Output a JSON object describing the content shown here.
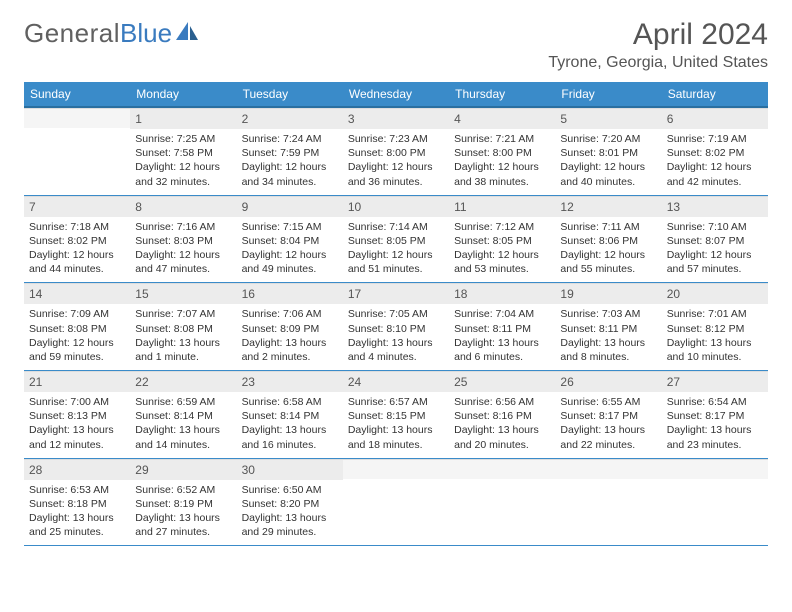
{
  "logo": {
    "text1": "General",
    "text2": "Blue"
  },
  "header": {
    "month": "April 2024",
    "location": "Tyrone, Georgia, United States"
  },
  "weekdays": [
    "Sunday",
    "Monday",
    "Tuesday",
    "Wednesday",
    "Thursday",
    "Friday",
    "Saturday"
  ],
  "colors": {
    "header_bg": "#3a8bc9",
    "header_text": "#ffffff",
    "daynum_bg": "#ececec",
    "border": "#3a8bc9"
  },
  "weeks": [
    [
      {
        "n": "",
        "sunrise": "",
        "sunset": "",
        "daylight1": "",
        "daylight2": ""
      },
      {
        "n": "1",
        "sunrise": "Sunrise: 7:25 AM",
        "sunset": "Sunset: 7:58 PM",
        "daylight1": "Daylight: 12 hours",
        "daylight2": "and 32 minutes."
      },
      {
        "n": "2",
        "sunrise": "Sunrise: 7:24 AM",
        "sunset": "Sunset: 7:59 PM",
        "daylight1": "Daylight: 12 hours",
        "daylight2": "and 34 minutes."
      },
      {
        "n": "3",
        "sunrise": "Sunrise: 7:23 AM",
        "sunset": "Sunset: 8:00 PM",
        "daylight1": "Daylight: 12 hours",
        "daylight2": "and 36 minutes."
      },
      {
        "n": "4",
        "sunrise": "Sunrise: 7:21 AM",
        "sunset": "Sunset: 8:00 PM",
        "daylight1": "Daylight: 12 hours",
        "daylight2": "and 38 minutes."
      },
      {
        "n": "5",
        "sunrise": "Sunrise: 7:20 AM",
        "sunset": "Sunset: 8:01 PM",
        "daylight1": "Daylight: 12 hours",
        "daylight2": "and 40 minutes."
      },
      {
        "n": "6",
        "sunrise": "Sunrise: 7:19 AM",
        "sunset": "Sunset: 8:02 PM",
        "daylight1": "Daylight: 12 hours",
        "daylight2": "and 42 minutes."
      }
    ],
    [
      {
        "n": "7",
        "sunrise": "Sunrise: 7:18 AM",
        "sunset": "Sunset: 8:02 PM",
        "daylight1": "Daylight: 12 hours",
        "daylight2": "and 44 minutes."
      },
      {
        "n": "8",
        "sunrise": "Sunrise: 7:16 AM",
        "sunset": "Sunset: 8:03 PM",
        "daylight1": "Daylight: 12 hours",
        "daylight2": "and 47 minutes."
      },
      {
        "n": "9",
        "sunrise": "Sunrise: 7:15 AM",
        "sunset": "Sunset: 8:04 PM",
        "daylight1": "Daylight: 12 hours",
        "daylight2": "and 49 minutes."
      },
      {
        "n": "10",
        "sunrise": "Sunrise: 7:14 AM",
        "sunset": "Sunset: 8:05 PM",
        "daylight1": "Daylight: 12 hours",
        "daylight2": "and 51 minutes."
      },
      {
        "n": "11",
        "sunrise": "Sunrise: 7:12 AM",
        "sunset": "Sunset: 8:05 PM",
        "daylight1": "Daylight: 12 hours",
        "daylight2": "and 53 minutes."
      },
      {
        "n": "12",
        "sunrise": "Sunrise: 7:11 AM",
        "sunset": "Sunset: 8:06 PM",
        "daylight1": "Daylight: 12 hours",
        "daylight2": "and 55 minutes."
      },
      {
        "n": "13",
        "sunrise": "Sunrise: 7:10 AM",
        "sunset": "Sunset: 8:07 PM",
        "daylight1": "Daylight: 12 hours",
        "daylight2": "and 57 minutes."
      }
    ],
    [
      {
        "n": "14",
        "sunrise": "Sunrise: 7:09 AM",
        "sunset": "Sunset: 8:08 PM",
        "daylight1": "Daylight: 12 hours",
        "daylight2": "and 59 minutes."
      },
      {
        "n": "15",
        "sunrise": "Sunrise: 7:07 AM",
        "sunset": "Sunset: 8:08 PM",
        "daylight1": "Daylight: 13 hours",
        "daylight2": "and 1 minute."
      },
      {
        "n": "16",
        "sunrise": "Sunrise: 7:06 AM",
        "sunset": "Sunset: 8:09 PM",
        "daylight1": "Daylight: 13 hours",
        "daylight2": "and 2 minutes."
      },
      {
        "n": "17",
        "sunrise": "Sunrise: 7:05 AM",
        "sunset": "Sunset: 8:10 PM",
        "daylight1": "Daylight: 13 hours",
        "daylight2": "and 4 minutes."
      },
      {
        "n": "18",
        "sunrise": "Sunrise: 7:04 AM",
        "sunset": "Sunset: 8:11 PM",
        "daylight1": "Daylight: 13 hours",
        "daylight2": "and 6 minutes."
      },
      {
        "n": "19",
        "sunrise": "Sunrise: 7:03 AM",
        "sunset": "Sunset: 8:11 PM",
        "daylight1": "Daylight: 13 hours",
        "daylight2": "and 8 minutes."
      },
      {
        "n": "20",
        "sunrise": "Sunrise: 7:01 AM",
        "sunset": "Sunset: 8:12 PM",
        "daylight1": "Daylight: 13 hours",
        "daylight2": "and 10 minutes."
      }
    ],
    [
      {
        "n": "21",
        "sunrise": "Sunrise: 7:00 AM",
        "sunset": "Sunset: 8:13 PM",
        "daylight1": "Daylight: 13 hours",
        "daylight2": "and 12 minutes."
      },
      {
        "n": "22",
        "sunrise": "Sunrise: 6:59 AM",
        "sunset": "Sunset: 8:14 PM",
        "daylight1": "Daylight: 13 hours",
        "daylight2": "and 14 minutes."
      },
      {
        "n": "23",
        "sunrise": "Sunrise: 6:58 AM",
        "sunset": "Sunset: 8:14 PM",
        "daylight1": "Daylight: 13 hours",
        "daylight2": "and 16 minutes."
      },
      {
        "n": "24",
        "sunrise": "Sunrise: 6:57 AM",
        "sunset": "Sunset: 8:15 PM",
        "daylight1": "Daylight: 13 hours",
        "daylight2": "and 18 minutes."
      },
      {
        "n": "25",
        "sunrise": "Sunrise: 6:56 AM",
        "sunset": "Sunset: 8:16 PM",
        "daylight1": "Daylight: 13 hours",
        "daylight2": "and 20 minutes."
      },
      {
        "n": "26",
        "sunrise": "Sunrise: 6:55 AM",
        "sunset": "Sunset: 8:17 PM",
        "daylight1": "Daylight: 13 hours",
        "daylight2": "and 22 minutes."
      },
      {
        "n": "27",
        "sunrise": "Sunrise: 6:54 AM",
        "sunset": "Sunset: 8:17 PM",
        "daylight1": "Daylight: 13 hours",
        "daylight2": "and 23 minutes."
      }
    ],
    [
      {
        "n": "28",
        "sunrise": "Sunrise: 6:53 AM",
        "sunset": "Sunset: 8:18 PM",
        "daylight1": "Daylight: 13 hours",
        "daylight2": "and 25 minutes."
      },
      {
        "n": "29",
        "sunrise": "Sunrise: 6:52 AM",
        "sunset": "Sunset: 8:19 PM",
        "daylight1": "Daylight: 13 hours",
        "daylight2": "and 27 minutes."
      },
      {
        "n": "30",
        "sunrise": "Sunrise: 6:50 AM",
        "sunset": "Sunset: 8:20 PM",
        "daylight1": "Daylight: 13 hours",
        "daylight2": "and 29 minutes."
      },
      {
        "n": "",
        "sunrise": "",
        "sunset": "",
        "daylight1": "",
        "daylight2": ""
      },
      {
        "n": "",
        "sunrise": "",
        "sunset": "",
        "daylight1": "",
        "daylight2": ""
      },
      {
        "n": "",
        "sunrise": "",
        "sunset": "",
        "daylight1": "",
        "daylight2": ""
      },
      {
        "n": "",
        "sunrise": "",
        "sunset": "",
        "daylight1": "",
        "daylight2": ""
      }
    ]
  ]
}
